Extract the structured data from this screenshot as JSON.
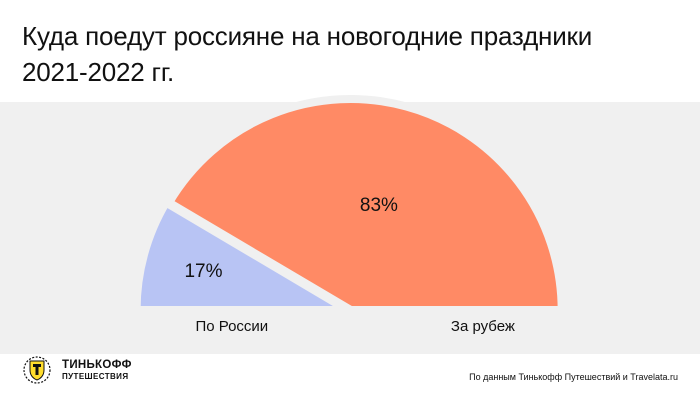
{
  "title_line1": "Куда поедут россияне на новогодние праздники",
  "title_line2": "2021-2022 гг.",
  "chart_data": {
    "type": "pie",
    "variant": "half-donut (semicircle)",
    "categories": [
      "По России",
      "За рубеж"
    ],
    "values": [
      17,
      83
    ],
    "value_labels": [
      "17%",
      "83%"
    ],
    "colors": [
      "#b8c4f4",
      "#ff8a65"
    ]
  },
  "colors": {
    "panel_bg": "#f0f0f0",
    "text": "#111111"
  },
  "logo": {
    "line1": "ТИНЬКОФФ",
    "line2": "ПУТЕШЕСТВИЯ",
    "icon": "tinkoff-shield-icon"
  },
  "source": "По данным Тинькофф Путешествий и Travelata.ru"
}
